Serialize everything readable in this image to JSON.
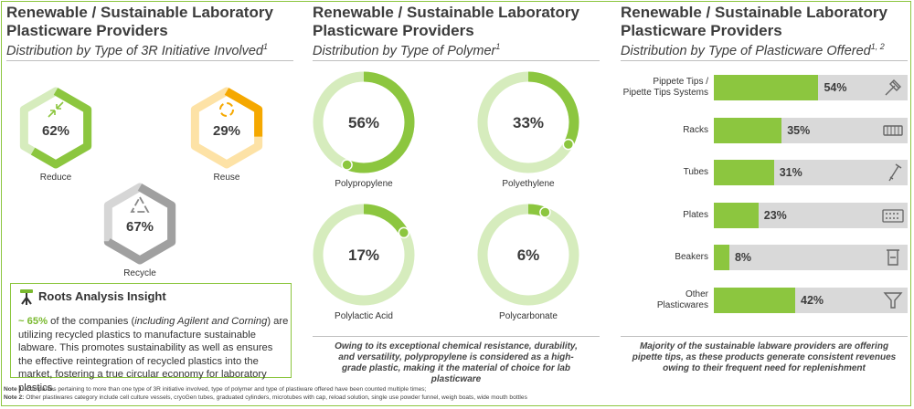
{
  "colors": {
    "green": "#8cc63f",
    "light_green": "#d6ecbd",
    "orange": "#f5a800",
    "light_orange": "#fde2a6",
    "gray": "#a0a0a0",
    "light_gray": "#d6d6d6",
    "bar_bg": "#d9d9d9"
  },
  "panel1": {
    "title_line1": "Renewable / Sustainable Laboratory",
    "title_line2": "Plasticware Providers",
    "subtitle": "Distribution by Type of 3R Initiative Involved",
    "subtitle_sup": "1",
    "insight_title": "Roots Analysis Insight",
    "insight_highlight": "~ 65%",
    "insight_text_a": " of the companies (",
    "insight_italic": "including Agilent and Corning",
    "insight_text_b": ") are utilizing recycled plastics to manufacture sustainable labware. This promotes sustainability as well as ensures the effective reintegration of recycled plastics into the market, fostering a true circular economy for laboratory plastics."
  },
  "panel2": {
    "title_line1": "Renewable / Sustainable Laboratory",
    "title_line2": "Plasticware Providers",
    "subtitle": "Distribution by Type of Polymer",
    "subtitle_sup": "1",
    "note": "Owing to its exceptional chemical resistance, durability, and versatility, polypropylene is considered as a high-grade plastic, making it the material of choice for lab plasticware"
  },
  "panel3": {
    "title_line1": "Renewable / Sustainable Laboratory",
    "title_line2": "Plasticware Providers",
    "subtitle": "Distribution by Type of Plasticware Offered",
    "subtitle_sup": "1, 2",
    "note": "Majority of the sustainable labware providers are offering pipette tips, as these products generate consistent revenues owing to their frequent need for replenishment"
  },
  "notes": {
    "note1_label": "Note 1:",
    "note1_text": " Companies pertaining to more than one type of 3R initiative involved, type of polymer and type of plastiware offered have been counted multiple times;",
    "note2_label": "Note 2:",
    "note2_text": " Other plastiwares category include cell culture vessels, cryoGen tubes, graduated cylinders, microtubes with cap, reload solution, single use powder  funnel, weigh boats, wide mouth bottles"
  },
  "chart_data": [
    {
      "type": "pie",
      "title": "Distribution by Type of 3R Initiative Involved",
      "categories": [
        "Reduce",
        "Reuse",
        "Recycle"
      ],
      "values": [
        62,
        29,
        67
      ],
      "value_labels": [
        "62%",
        "29%",
        "67%"
      ],
      "icons": [
        "compress-arrows-icon",
        "reuse-cycle-icon",
        "recycle-icon"
      ]
    },
    {
      "type": "pie",
      "title": "Distribution by Type of Polymer",
      "categories": [
        "Polypropylene",
        "Polyethylene",
        "Polylactic Acid",
        "Polycarbonate"
      ],
      "values": [
        56,
        33,
        17,
        6
      ],
      "value_labels": [
        "56%",
        "33%",
        "17%",
        "6%"
      ]
    },
    {
      "type": "bar",
      "orientation": "horizontal",
      "title": "Distribution by Type of Plasticware Offered",
      "categories": [
        "Pippete Tips / Pipette Tips Systems",
        "Racks",
        "Tubes",
        "Plates",
        "Beakers",
        "Other Plasticwares"
      ],
      "category_lines": [
        [
          "Pippete Tips /",
          "Pipette Tips Systems"
        ],
        [
          "Racks"
        ],
        [
          "Tubes"
        ],
        [
          "Plates"
        ],
        [
          "Beakers"
        ],
        [
          "Other",
          "Plasticwares"
        ]
      ],
      "values": [
        54,
        35,
        31,
        23,
        8,
        42
      ],
      "value_labels": [
        "54%",
        "35%",
        "31%",
        "23%",
        "8%",
        "42%"
      ],
      "icons": [
        "pipette-icon",
        "rack-icon",
        "tube-icon",
        "plate-icon",
        "beaker-icon",
        "funnel-icon"
      ],
      "xlim": [
        0,
        100
      ]
    }
  ]
}
